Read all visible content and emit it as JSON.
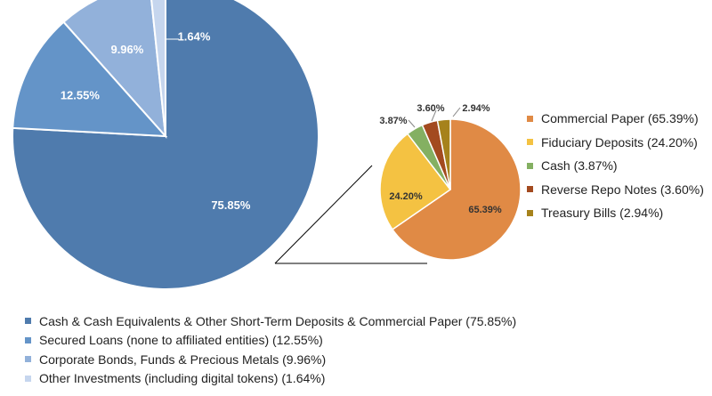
{
  "chart_data": [
    {
      "type": "pie",
      "slices": [
        {
          "label": "Cash & Cash Equivalents & Other Short-Term Deposits & Commercial Paper (75.85%)",
          "value": 75.85,
          "data_label": "75.85%",
          "color": "#4F7BAD"
        },
        {
          "label": "Secured Loans (none to affiliated entities) (12.55%)",
          "value": 12.55,
          "data_label": "12.55%",
          "color": "#6494C8"
        },
        {
          "label": "Corporate Bonds, Funds & Precious Metals (9.96%)",
          "value": 9.96,
          "data_label": "9.96%",
          "color": "#92B1DA"
        },
        {
          "label": "Other Investments (including digital tokens) (1.64%)",
          "value": 1.64,
          "data_label": "1.64%",
          "color": "#C6D6EE"
        }
      ]
    },
    {
      "type": "pie",
      "slices": [
        {
          "label": "Commercial Paper (65.39%)",
          "value": 65.39,
          "data_label": "65.39%",
          "color": "#E08A45"
        },
        {
          "label": "Fiduciary Deposits (24.20%)",
          "value": 24.2,
          "data_label": "24.20%",
          "color": "#F4C242"
        },
        {
          "label": "Cash (3.87%)",
          "value": 3.87,
          "data_label": "3.87%",
          "color": "#84B062"
        },
        {
          "label": "Reverse Repo Notes (3.60%)",
          "value": 3.6,
          "data_label": "3.60%",
          "color": "#A34A1F"
        },
        {
          "label": "Treasury Bills (2.94%)",
          "value": 2.94,
          "data_label": "2.94%",
          "color": "#A6821B"
        }
      ]
    }
  ]
}
